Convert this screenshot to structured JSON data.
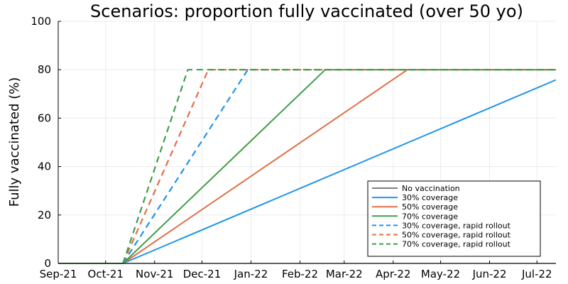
{
  "chart_data": {
    "type": "line",
    "title": "Scenarios: proportion fully vaccinated (over 50 yo)",
    "xlabel": "",
    "ylabel": "Fully vaccinated (%)",
    "x_start": "2021-09-01",
    "xlim": [
      "2021-09-01",
      "2022-07-13"
    ],
    "ylim": [
      0,
      100
    ],
    "x_ticks": [
      {
        "date": "2021-09-01",
        "label": "Sep-21"
      },
      {
        "date": "2021-10-01",
        "label": "Oct-21"
      },
      {
        "date": "2021-11-01",
        "label": "Nov-21"
      },
      {
        "date": "2021-12-01",
        "label": "Dec-21"
      },
      {
        "date": "2022-01-01",
        "label": "Jan-22"
      },
      {
        "date": "2022-02-01",
        "label": "Feb-22"
      },
      {
        "date": "2022-03-01",
        "label": "Mar-22"
      },
      {
        "date": "2022-04-01",
        "label": "Apr-22"
      },
      {
        "date": "2022-05-01",
        "label": "May-22"
      },
      {
        "date": "2022-06-01",
        "label": "Jun-22"
      },
      {
        "date": "2022-07-01",
        "label": "Jul-22"
      }
    ],
    "y_ticks": [
      0,
      20,
      40,
      60,
      80,
      100
    ],
    "grid": true,
    "legend_position": "bottom-right",
    "series": [
      {
        "name": "No vaccination",
        "color": "#7f7f7f",
        "dash": "solid",
        "x": [
          "2021-09-01",
          "2021-10-12",
          "2022-07-13"
        ],
        "y": [
          0,
          0,
          0
        ]
      },
      {
        "name": "30% coverage",
        "color": "#1f96e8",
        "dash": "solid",
        "x": [
          "2021-09-01",
          "2021-10-12",
          "2022-07-13"
        ],
        "y": [
          0,
          0,
          75.8
        ]
      },
      {
        "name": "50% coverage",
        "color": "#e0704a",
        "dash": "solid",
        "x": [
          "2021-09-01",
          "2021-10-12",
          "2022-04-10",
          "2022-07-13"
        ],
        "y": [
          0,
          0,
          80,
          80
        ]
      },
      {
        "name": "70% coverage",
        "color": "#3f9f48",
        "dash": "solid",
        "x": [
          "2021-09-01",
          "2021-10-12",
          "2022-02-17",
          "2022-07-13"
        ],
        "y": [
          0,
          0,
          80,
          80
        ]
      },
      {
        "name": "30% coverage, rapid rollout",
        "color": "#1f96e8",
        "dash": "dashed",
        "x": [
          "2021-10-12",
          "2021-12-30",
          "2022-07-13"
        ],
        "y": [
          0,
          80,
          80
        ]
      },
      {
        "name": "50% coverage, rapid rollout",
        "color": "#e0704a",
        "dash": "dashed",
        "x": [
          "2021-10-12",
          "2021-12-05",
          "2022-07-13"
        ],
        "y": [
          0,
          80,
          80
        ]
      },
      {
        "name": "70% coverage, rapid rollout",
        "color": "#3f9f48",
        "dash": "dashed",
        "x": [
          "2021-10-12",
          "2021-11-22",
          "2022-07-13"
        ],
        "y": [
          0,
          80,
          80
        ]
      }
    ]
  }
}
